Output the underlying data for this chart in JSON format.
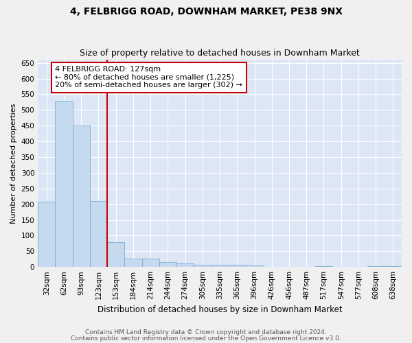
{
  "title1": "4, FELBRIGG ROAD, DOWNHAM MARKET, PE38 9NX",
  "title2": "Size of property relative to detached houses in Downham Market",
  "xlabel": "Distribution of detached houses by size in Downham Market",
  "ylabel": "Number of detached properties",
  "categories": [
    "32sqm",
    "62sqm",
    "93sqm",
    "123sqm",
    "153sqm",
    "184sqm",
    "214sqm",
    "244sqm",
    "274sqm",
    "305sqm",
    "335sqm",
    "365sqm",
    "396sqm",
    "426sqm",
    "456sqm",
    "487sqm",
    "517sqm",
    "547sqm",
    "577sqm",
    "608sqm",
    "638sqm"
  ],
  "values": [
    207,
    530,
    450,
    210,
    78,
    27,
    27,
    15,
    12,
    8,
    8,
    8,
    5,
    0,
    0,
    0,
    3,
    0,
    0,
    3,
    3
  ],
  "bar_color": "#c5d9ef",
  "bar_edge_color": "#7aadd4",
  "red_line_x": 3.5,
  "annotation_line1": "4 FELBRIGG ROAD: 127sqm",
  "annotation_line2": "← 80% of detached houses are smaller (1,225)",
  "annotation_line3": "20% of semi-detached houses are larger (302) →",
  "annotation_box_color": "#ffffff",
  "annotation_box_edge": "#cc0000",
  "red_line_color": "#cc0000",
  "ylim": [
    0,
    660
  ],
  "yticks": [
    0,
    50,
    100,
    150,
    200,
    250,
    300,
    350,
    400,
    450,
    500,
    550,
    600,
    650
  ],
  "fig_bg_color": "#f0f0f0",
  "plot_bg_color": "#dce6f5",
  "grid_color": "#ffffff",
  "footer1": "Contains HM Land Registry data © Crown copyright and database right 2024.",
  "footer2": "Contains public sector information licensed under the Open Government Licence v3.0.",
  "title1_fontsize": 10,
  "title2_fontsize": 9,
  "xlabel_fontsize": 8.5,
  "ylabel_fontsize": 8,
  "tick_fontsize": 7.5,
  "annotation_fontsize": 8,
  "footer_fontsize": 6.5
}
